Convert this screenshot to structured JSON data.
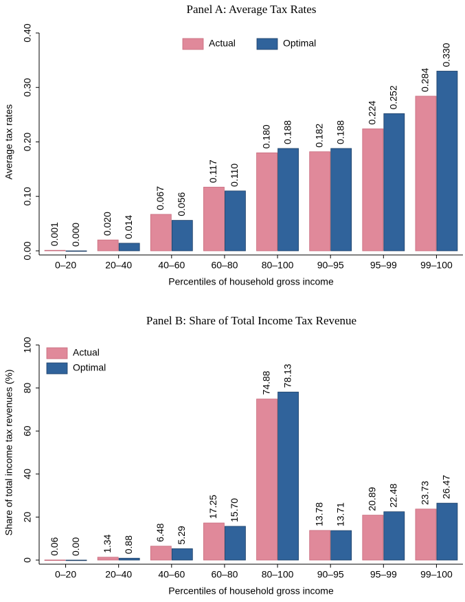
{
  "chart_data": [
    {
      "type": "bar",
      "title": "Panel A: Average Tax Rates",
      "x_label": "Percentiles of household gross income",
      "y_label": "Average tax rates",
      "categories": [
        "0–20",
        "20–40",
        "40–60",
        "60–80",
        "80–100",
        "90–95",
        "95–99",
        "99–100"
      ],
      "series": [
        {
          "name": "Actual",
          "color": "#e0899a",
          "values": [
            0.001,
            0.02,
            0.067,
            0.117,
            0.18,
            0.182,
            0.224,
            0.284
          ],
          "value_labels": [
            "0.001",
            "0.020",
            "0.067",
            "0.117",
            "0.180",
            "0.182",
            "0.224",
            "0.284"
          ]
        },
        {
          "name": "Optimal",
          "color": "#30639b",
          "values": [
            0,
            0.014,
            0.056,
            0.11,
            0.188,
            0.188,
            0.252,
            0.33
          ],
          "value_labels": [
            "0.000",
            "0.014",
            "0.056",
            "0.110",
            "0.188",
            "0.188",
            "0.252",
            "0.330"
          ]
        }
      ],
      "ylim": [
        0,
        0.4
      ],
      "yticks": [
        {
          "value": 0,
          "label": "0.00"
        },
        {
          "value": 0.1,
          "label": "0.10"
        },
        {
          "value": 0.2,
          "label": "0.20"
        },
        {
          "value": 0.3,
          "label": "0.30"
        },
        {
          "value": 0.4,
          "label": "0.40"
        }
      ],
      "legend": "top"
    },
    {
      "type": "bar",
      "title": "Panel B: Share of Total Income Tax Revenue",
      "x_label": "Percentiles of household gross income",
      "y_label": "Share of total income tax revenues (%)",
      "categories": [
        "0–20",
        "20–40",
        "40–60",
        "60–80",
        "80–100",
        "90–95",
        "95–99",
        "99–100"
      ],
      "series": [
        {
          "name": "Actual",
          "color": "#e0899a",
          "values": [
            0.06,
            1.34,
            6.48,
            17.25,
            74.88,
            13.78,
            20.89,
            23.73
          ],
          "value_labels": [
            "0.06",
            "1.34",
            "6.48",
            "17.25",
            "74.88",
            "13.78",
            "20.89",
            "23.73"
          ]
        },
        {
          "name": "Optimal",
          "color": "#30639b",
          "values": [
            0,
            0.88,
            5.29,
            15.7,
            78.13,
            13.71,
            22.48,
            26.47
          ],
          "value_labels": [
            "0.00",
            "0.88",
            "5.29",
            "15.70",
            "78.13",
            "13.71",
            "22.48",
            "26.47"
          ]
        }
      ],
      "ylim": [
        0,
        100
      ],
      "yticks": [
        0,
        20,
        40,
        60,
        80,
        100
      ],
      "legend": "top-left"
    }
  ]
}
